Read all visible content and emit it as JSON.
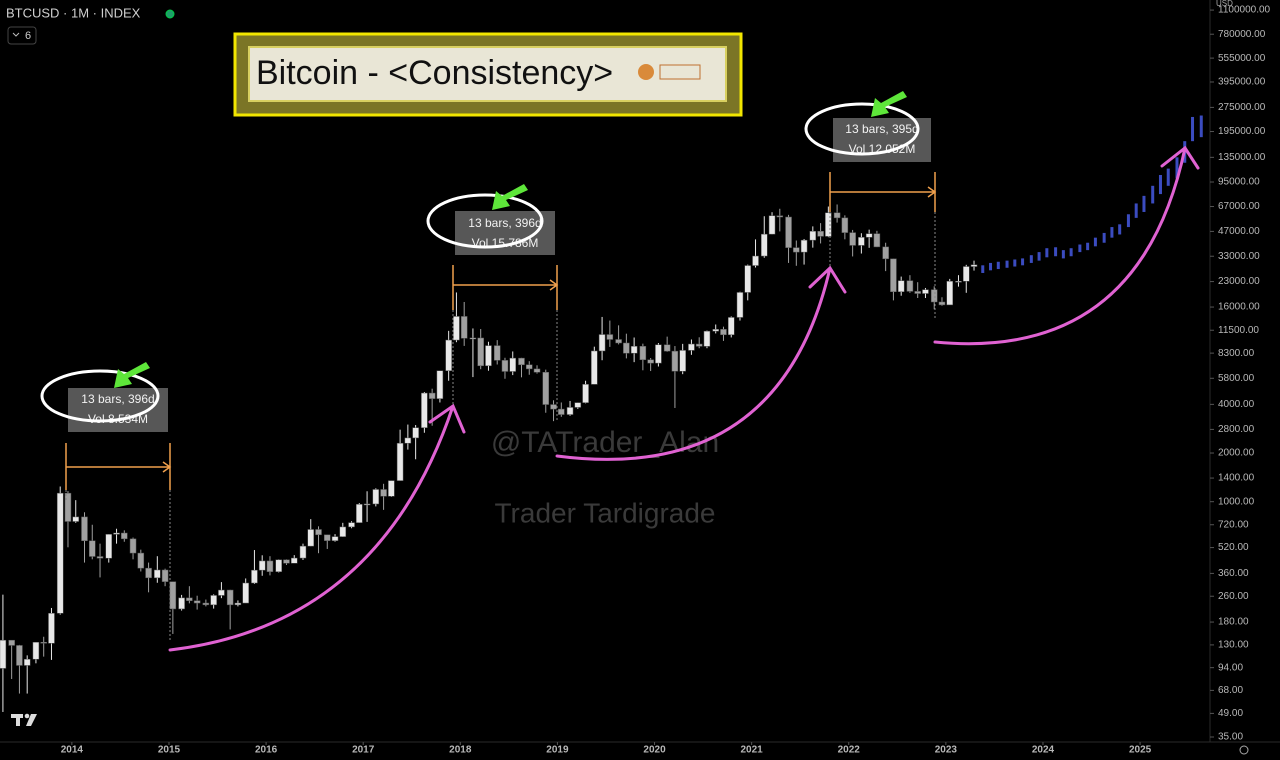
{
  "toolbar": {
    "symbol": "BTCUSD · 1M · INDEX",
    "layout_count": 6
  },
  "chart_data": {
    "type": "candlestick",
    "title": "Bitcoin - <Consistency>",
    "y_unit": "USD",
    "log_scale": true,
    "grid": false,
    "up_color": "#e8e8e8",
    "down_color": "#a0a0a0",
    "xlim": [
      2013.26,
      2025.72
    ],
    "xticks": [
      2014,
      2015,
      2016,
      2017,
      2018,
      2019,
      2020,
      2021,
      2022,
      2023,
      2024,
      2025
    ],
    "ylim": [
      32.6,
      1270000
    ],
    "yticks": [
      {
        "value": 35,
        "label": "35.00"
      },
      {
        "value": 49,
        "label": "49.00"
      },
      {
        "value": 68,
        "label": "68.00"
      },
      {
        "value": 94,
        "label": "94.00"
      },
      {
        "value": 130,
        "label": "130.00"
      },
      {
        "value": 180,
        "label": "180.00"
      },
      {
        "value": 260,
        "label": "260.00"
      },
      {
        "value": 360,
        "label": "360.00"
      },
      {
        "value": 520,
        "label": "520.00"
      },
      {
        "value": 720,
        "label": "720.00"
      },
      {
        "value": 1000,
        "label": "1000.00"
      },
      {
        "value": 1400,
        "label": "1400.00"
      },
      {
        "value": 2000,
        "label": "2000.00"
      },
      {
        "value": 2800,
        "label": "2800.00"
      },
      {
        "value": 4000,
        "label": "4000.00"
      },
      {
        "value": 5800,
        "label": "5800.00"
      },
      {
        "value": 8300,
        "label": "8300.00"
      },
      {
        "value": 11500,
        "label": "11500.00"
      },
      {
        "value": 16000,
        "label": "16000.00"
      },
      {
        "value": 23000,
        "label": "23000.00"
      },
      {
        "value": 33000,
        "label": "33000.00"
      },
      {
        "value": 47000,
        "label": "47000.00"
      },
      {
        "value": 67000,
        "label": "67000.00"
      },
      {
        "value": 95000,
        "label": "95000.00"
      },
      {
        "value": 135000,
        "label": "135000.00"
      },
      {
        "value": 195000,
        "label": "195000.00"
      },
      {
        "value": 275000,
        "label": "275000.00"
      },
      {
        "value": 395000,
        "label": "395000.00"
      },
      {
        "value": 555000,
        "label": "555000.00"
      },
      {
        "value": 780000,
        "label": "780000.00"
      },
      {
        "value": 1100000,
        "label": "1100000.00"
      }
    ],
    "x": [
      2013.29,
      2013.38,
      2013.46,
      2013.54,
      2013.63,
      2013.71,
      2013.79,
      2013.88,
      2013.96,
      2014.04,
      2014.13,
      2014.21,
      2014.29,
      2014.38,
      2014.46,
      2014.54,
      2014.63,
      2014.71,
      2014.79,
      2014.88,
      2014.96,
      2015.04,
      2015.13,
      2015.21,
      2015.29,
      2015.38,
      2015.46,
      2015.54,
      2015.63,
      2015.71,
      2015.79,
      2015.88,
      2015.96,
      2016.04,
      2016.13,
      2016.21,
      2016.29,
      2016.38,
      2016.46,
      2016.54,
      2016.63,
      2016.71,
      2016.79,
      2016.88,
      2016.96,
      2017.04,
      2017.13,
      2017.21,
      2017.29,
      2017.38,
      2017.46,
      2017.54,
      2017.63,
      2017.71,
      2017.79,
      2017.88,
      2017.96,
      2018.04,
      2018.13,
      2018.21,
      2018.29,
      2018.38,
      2018.46,
      2018.54,
      2018.63,
      2018.71,
      2018.79,
      2018.88,
      2018.96,
      2019.04,
      2019.13,
      2019.21,
      2019.29,
      2019.38,
      2019.46,
      2019.54,
      2019.63,
      2019.71,
      2019.79,
      2019.88,
      2019.96,
      2020.04,
      2020.13,
      2020.21,
      2020.29,
      2020.38,
      2020.46,
      2020.54,
      2020.63,
      2020.71,
      2020.79,
      2020.88,
      2020.96,
      2021.04,
      2021.13,
      2021.21,
      2021.29,
      2021.38,
      2021.46,
      2021.54,
      2021.63,
      2021.71,
      2021.79,
      2021.88,
      2021.96,
      2022.04,
      2022.13,
      2022.21,
      2022.29,
      2022.38,
      2022.46,
      2022.54,
      2022.63,
      2022.71,
      2022.79,
      2022.88,
      2022.96,
      2023.04,
      2023.13,
      2023.21,
      2023.29
    ],
    "open": [
      93,
      139,
      129,
      97,
      106,
      135,
      133,
      204,
      1129,
      754,
      805,
      573,
      458,
      447,
      628,
      640,
      589,
      481,
      388,
      338,
      378,
      320,
      217,
      254,
      244,
      236,
      230,
      263,
      284,
      230,
      236,
      314,
      377,
      430,
      369,
      437,
      416,
      448,
      531,
      673,
      624,
      574,
      608,
      698,
      742,
      963,
      968,
      1190,
      1080,
      1350,
      2300,
      2480,
      2870,
      4700,
      4340,
      6460,
      10000,
      14000,
      10250,
      10300,
      6930,
      9240,
      7490,
      6390,
      7730,
      7030,
      6630,
      6320,
      3990,
      3740,
      3460,
      3830,
      4100,
      5320,
      8560,
      10820,
      10080,
      9590,
      8290,
      9150,
      7550,
      7200,
      9350,
      8540,
      6410,
      8630,
      9450,
      9140,
      11350,
      11650,
      10780,
      13800,
      19700,
      28900,
      33100,
      45200,
      58800,
      57700,
      37300,
      35000,
      41500,
      47100,
      43800,
      61300,
      57000,
      46200,
      38500,
      43200,
      45500,
      37700,
      31800,
      19900,
      23300,
      20000,
      19400,
      20500,
      17200,
      16500,
      23100,
      23100,
      28500
    ],
    "high": [
      266,
      130,
      130,
      112,
      135,
      146,
      220,
      1242,
      1163,
      1022,
      860,
      720,
      550,
      630,
      680,
      665,
      600,
      505,
      420,
      460,
      385,
      320,
      265,
      300,
      262,
      248,
      267,
      318,
      285,
      245,
      335,
      502,
      466,
      460,
      440,
      440,
      467,
      550,
      780,
      704,
      626,
      630,
      740,
      757,
      980,
      1160,
      1210,
      1290,
      1350,
      2790,
      3000,
      2980,
      4770,
      5000,
      6470,
      11400,
      19700,
      17200,
      11800,
      11700,
      9760,
      9990,
      7770,
      8500,
      7760,
      7400,
      6980,
      6560,
      4240,
      4110,
      4200,
      4110,
      5600,
      9100,
      13900,
      13200,
      12330,
      10950,
      10370,
      9500,
      7740,
      9580,
      10500,
      9180,
      9470,
      10080,
      10400,
      11450,
      12480,
      12100,
      14000,
      19900,
      29300,
      41950,
      58350,
      61800,
      64900,
      59500,
      41300,
      42200,
      50500,
      52900,
      67000,
      69000,
      59100,
      48000,
      45800,
      48200,
      47400,
      40000,
      31900,
      24700,
      25200,
      22800,
      21000,
      21500,
      18400,
      23900,
      25200,
      29200,
      31000
    ],
    "low": [
      50,
      80,
      65,
      65,
      100,
      110,
      105,
      200,
      522,
      740,
      420,
      440,
      340,
      420,
      550,
      565,
      440,
      370,
      275,
      315,
      300,
      152,
      212,
      235,
      215,
      225,
      218,
      253,
      162,
      225,
      236,
      310,
      348,
      350,
      365,
      406,
      415,
      436,
      530,
      480,
      510,
      566,
      605,
      685,
      740,
      750,
      935,
      890,
      1070,
      1350,
      2100,
      1830,
      2670,
      2950,
      4110,
      5600,
      9700,
      9200,
      5900,
      6600,
      6460,
      7060,
      5760,
      6070,
      5880,
      6100,
      6200,
      3550,
      3150,
      3350,
      3400,
      3750,
      4060,
      5320,
      7500,
      9070,
      9400,
      7700,
      7300,
      6500,
      6430,
      6860,
      8460,
      3800,
      6150,
      8100,
      8900,
      8900,
      10990,
      9880,
      10380,
      13200,
      17600,
      28100,
      32300,
      45000,
      47000,
      30000,
      28800,
      29300,
      37300,
      39600,
      43300,
      53300,
      42000,
      32900,
      34300,
      37200,
      37600,
      26700,
      17600,
      18800,
      19600,
      18200,
      18200,
      15500,
      16300,
      16500,
      21400,
      19600,
      26900
    ],
    "close": [
      139,
      129,
      97,
      106,
      135,
      133,
      204,
      1129,
      754,
      805,
      573,
      458,
      447,
      628,
      640,
      589,
      481,
      388,
      338,
      378,
      320,
      217,
      254,
      244,
      236,
      230,
      263,
      284,
      230,
      236,
      314,
      377,
      430,
      369,
      437,
      416,
      448,
      531,
      673,
      624,
      574,
      608,
      698,
      742,
      963,
      968,
      1190,
      1080,
      1350,
      2300,
      2480,
      2870,
      4700,
      4340,
      6460,
      10000,
      14000,
      10250,
      10300,
      6930,
      9240,
      7490,
      6390,
      7730,
      7030,
      6630,
      6320,
      3990,
      3740,
      3460,
      3830,
      4100,
      5320,
      8560,
      10820,
      10080,
      9590,
      8290,
      9150,
      7550,
      7200,
      9350,
      8540,
      6410,
      8630,
      9450,
      9140,
      11350,
      11650,
      10780,
      13800,
      19700,
      28900,
      33100,
      45200,
      58800,
      57700,
      37300,
      35000,
      41500,
      47100,
      43800,
      61300,
      57000,
      46200,
      38500,
      43200,
      45500,
      37700,
      31800,
      19900,
      23300,
      20000,
      19400,
      20500,
      17200,
      16500,
      23100,
      23100,
      28500,
      29200
    ],
    "projection": {
      "color": "#3b4cc0",
      "x": [
        2023.38,
        2023.46,
        2023.54,
        2023.63,
        2023.71,
        2023.79,
        2023.88,
        2023.96,
        2024.04,
        2024.13,
        2024.21,
        2024.29,
        2024.38,
        2024.46,
        2024.54,
        2024.63,
        2024.71,
        2024.79,
        2024.88,
        2024.96,
        2025.04,
        2025.13,
        2025.21,
        2025.29,
        2025.38,
        2025.46,
        2025.54,
        2025.63
      ],
      "low": [
        26000,
        27000,
        27500,
        28000,
        28500,
        29000,
        30000,
        31000,
        32500,
        33000,
        32000,
        33000,
        35000,
        36000,
        38000,
        40000,
        43000,
        45000,
        50000,
        57000,
        62000,
        70000,
        80000,
        90000,
        100000,
        125000,
        170000,
        180000
      ],
      "high": [
        29000,
        30000,
        30500,
        31000,
        31500,
        32000,
        33500,
        35000,
        37000,
        37500,
        36000,
        37000,
        39000,
        40000,
        43000,
        46000,
        50000,
        52000,
        60000,
        70000,
        78000,
        90000,
        105000,
        115000,
        135000,
        170000,
        240000,
        245000
      ]
    },
    "measurements": [
      {
        "bars": "13 bars, 396d",
        "volume": "Vol 8.534M"
      },
      {
        "bars": "13 bars, 396d",
        "volume": "Vol 15.786M"
      },
      {
        "bars": "13 bars, 395d",
        "volume": "Vol 12.052M"
      }
    ],
    "watermarks": [
      "@TATrader_Alan",
      "Trader Tardigrade"
    ]
  }
}
